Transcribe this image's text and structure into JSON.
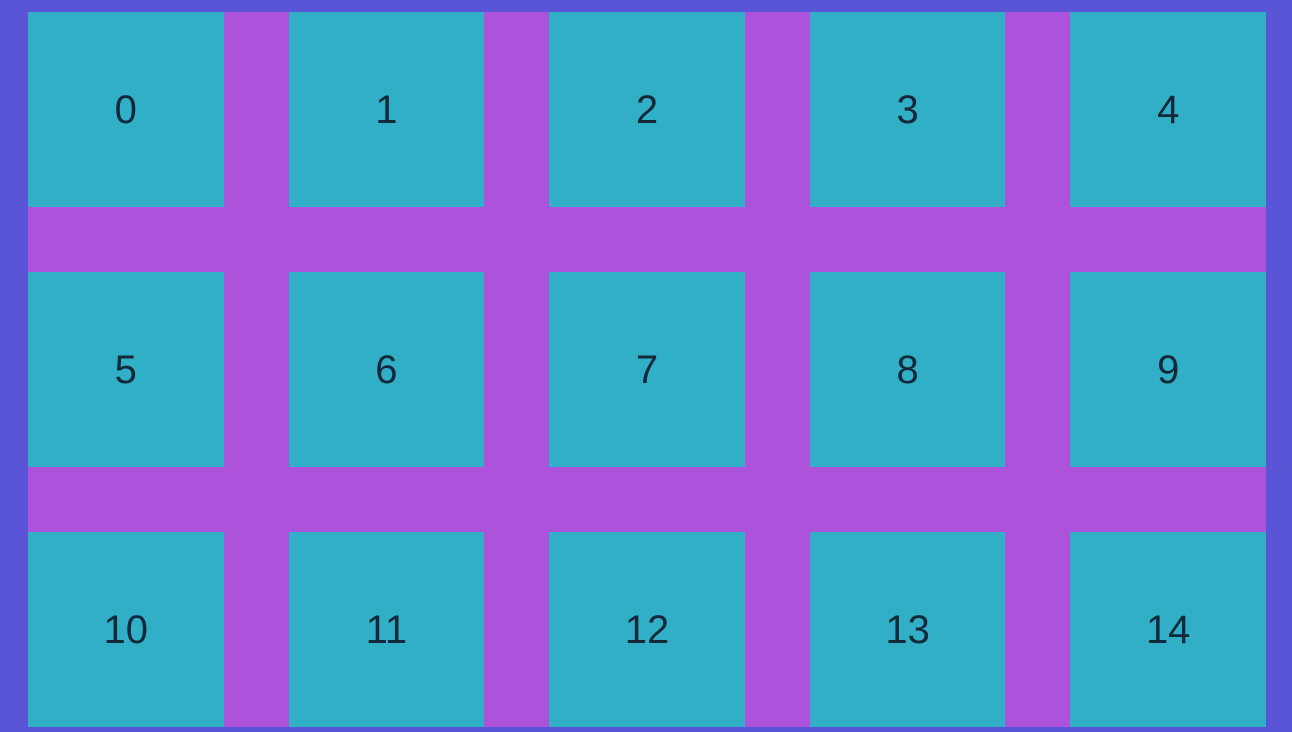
{
  "grid": {
    "columns": 5,
    "rows": 3,
    "cells": [
      "0",
      "1",
      "2",
      "3",
      "4",
      "5",
      "6",
      "7",
      "8",
      "9",
      "10",
      "11",
      "12",
      "13",
      "14"
    ]
  },
  "colors": {
    "page_background": "#5a54d6",
    "grid_background": "#ad52da",
    "cell_background": "#31afc6",
    "cell_text": "#13293a"
  }
}
